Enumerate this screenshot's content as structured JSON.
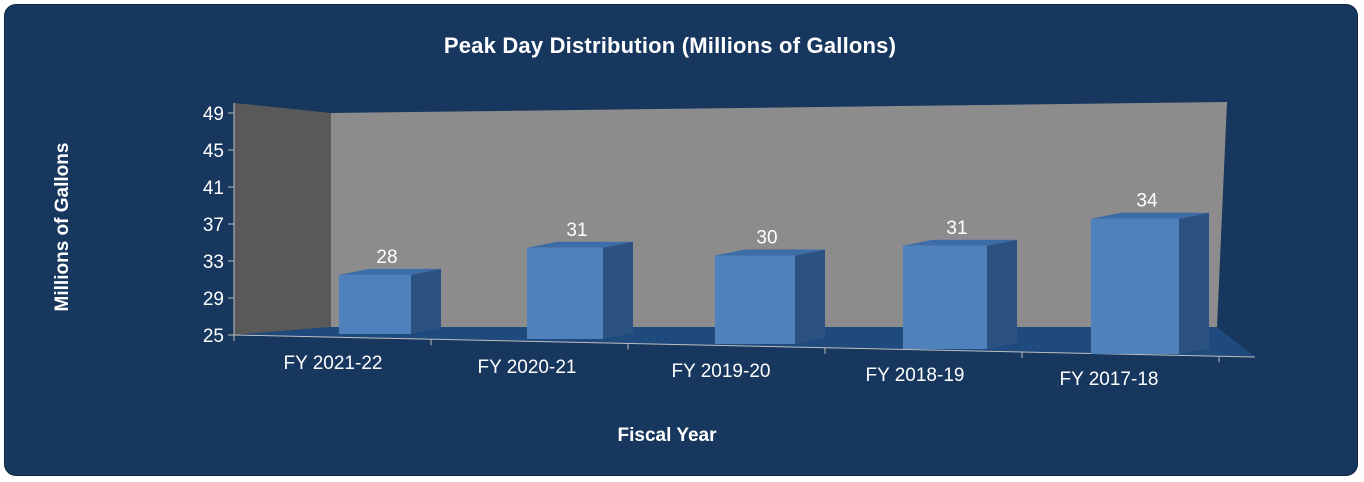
{
  "chart_data": {
    "type": "bar",
    "title": "Peak Day Distribution (Millions of Gallons)",
    "xlabel": "Fiscal Year",
    "ylabel": "Millions of Gallons",
    "categories": [
      "FY 2021-22",
      "FY 2020-21",
      "FY 2019-20",
      "FY 2018-19",
      "FY 2017-18"
    ],
    "values": [
      28,
      31,
      30,
      31,
      34
    ],
    "data_labels": [
      "28",
      "31",
      "30",
      "31",
      "34"
    ],
    "yticks": [
      "25",
      "29",
      "33",
      "37",
      "41",
      "45",
      "49"
    ],
    "ylim": [
      25,
      49
    ],
    "three_d": true,
    "grid": false,
    "legend": "none"
  },
  "colors": {
    "background": "#17375e",
    "back_wall": "#8c8c8c",
    "side_wall": "#595959",
    "floor": "#1f4a7e",
    "bar_front": "#4f81bd",
    "bar_top": "#3d6da8",
    "bar_side": "#2c5282",
    "text": "#ffffff"
  }
}
